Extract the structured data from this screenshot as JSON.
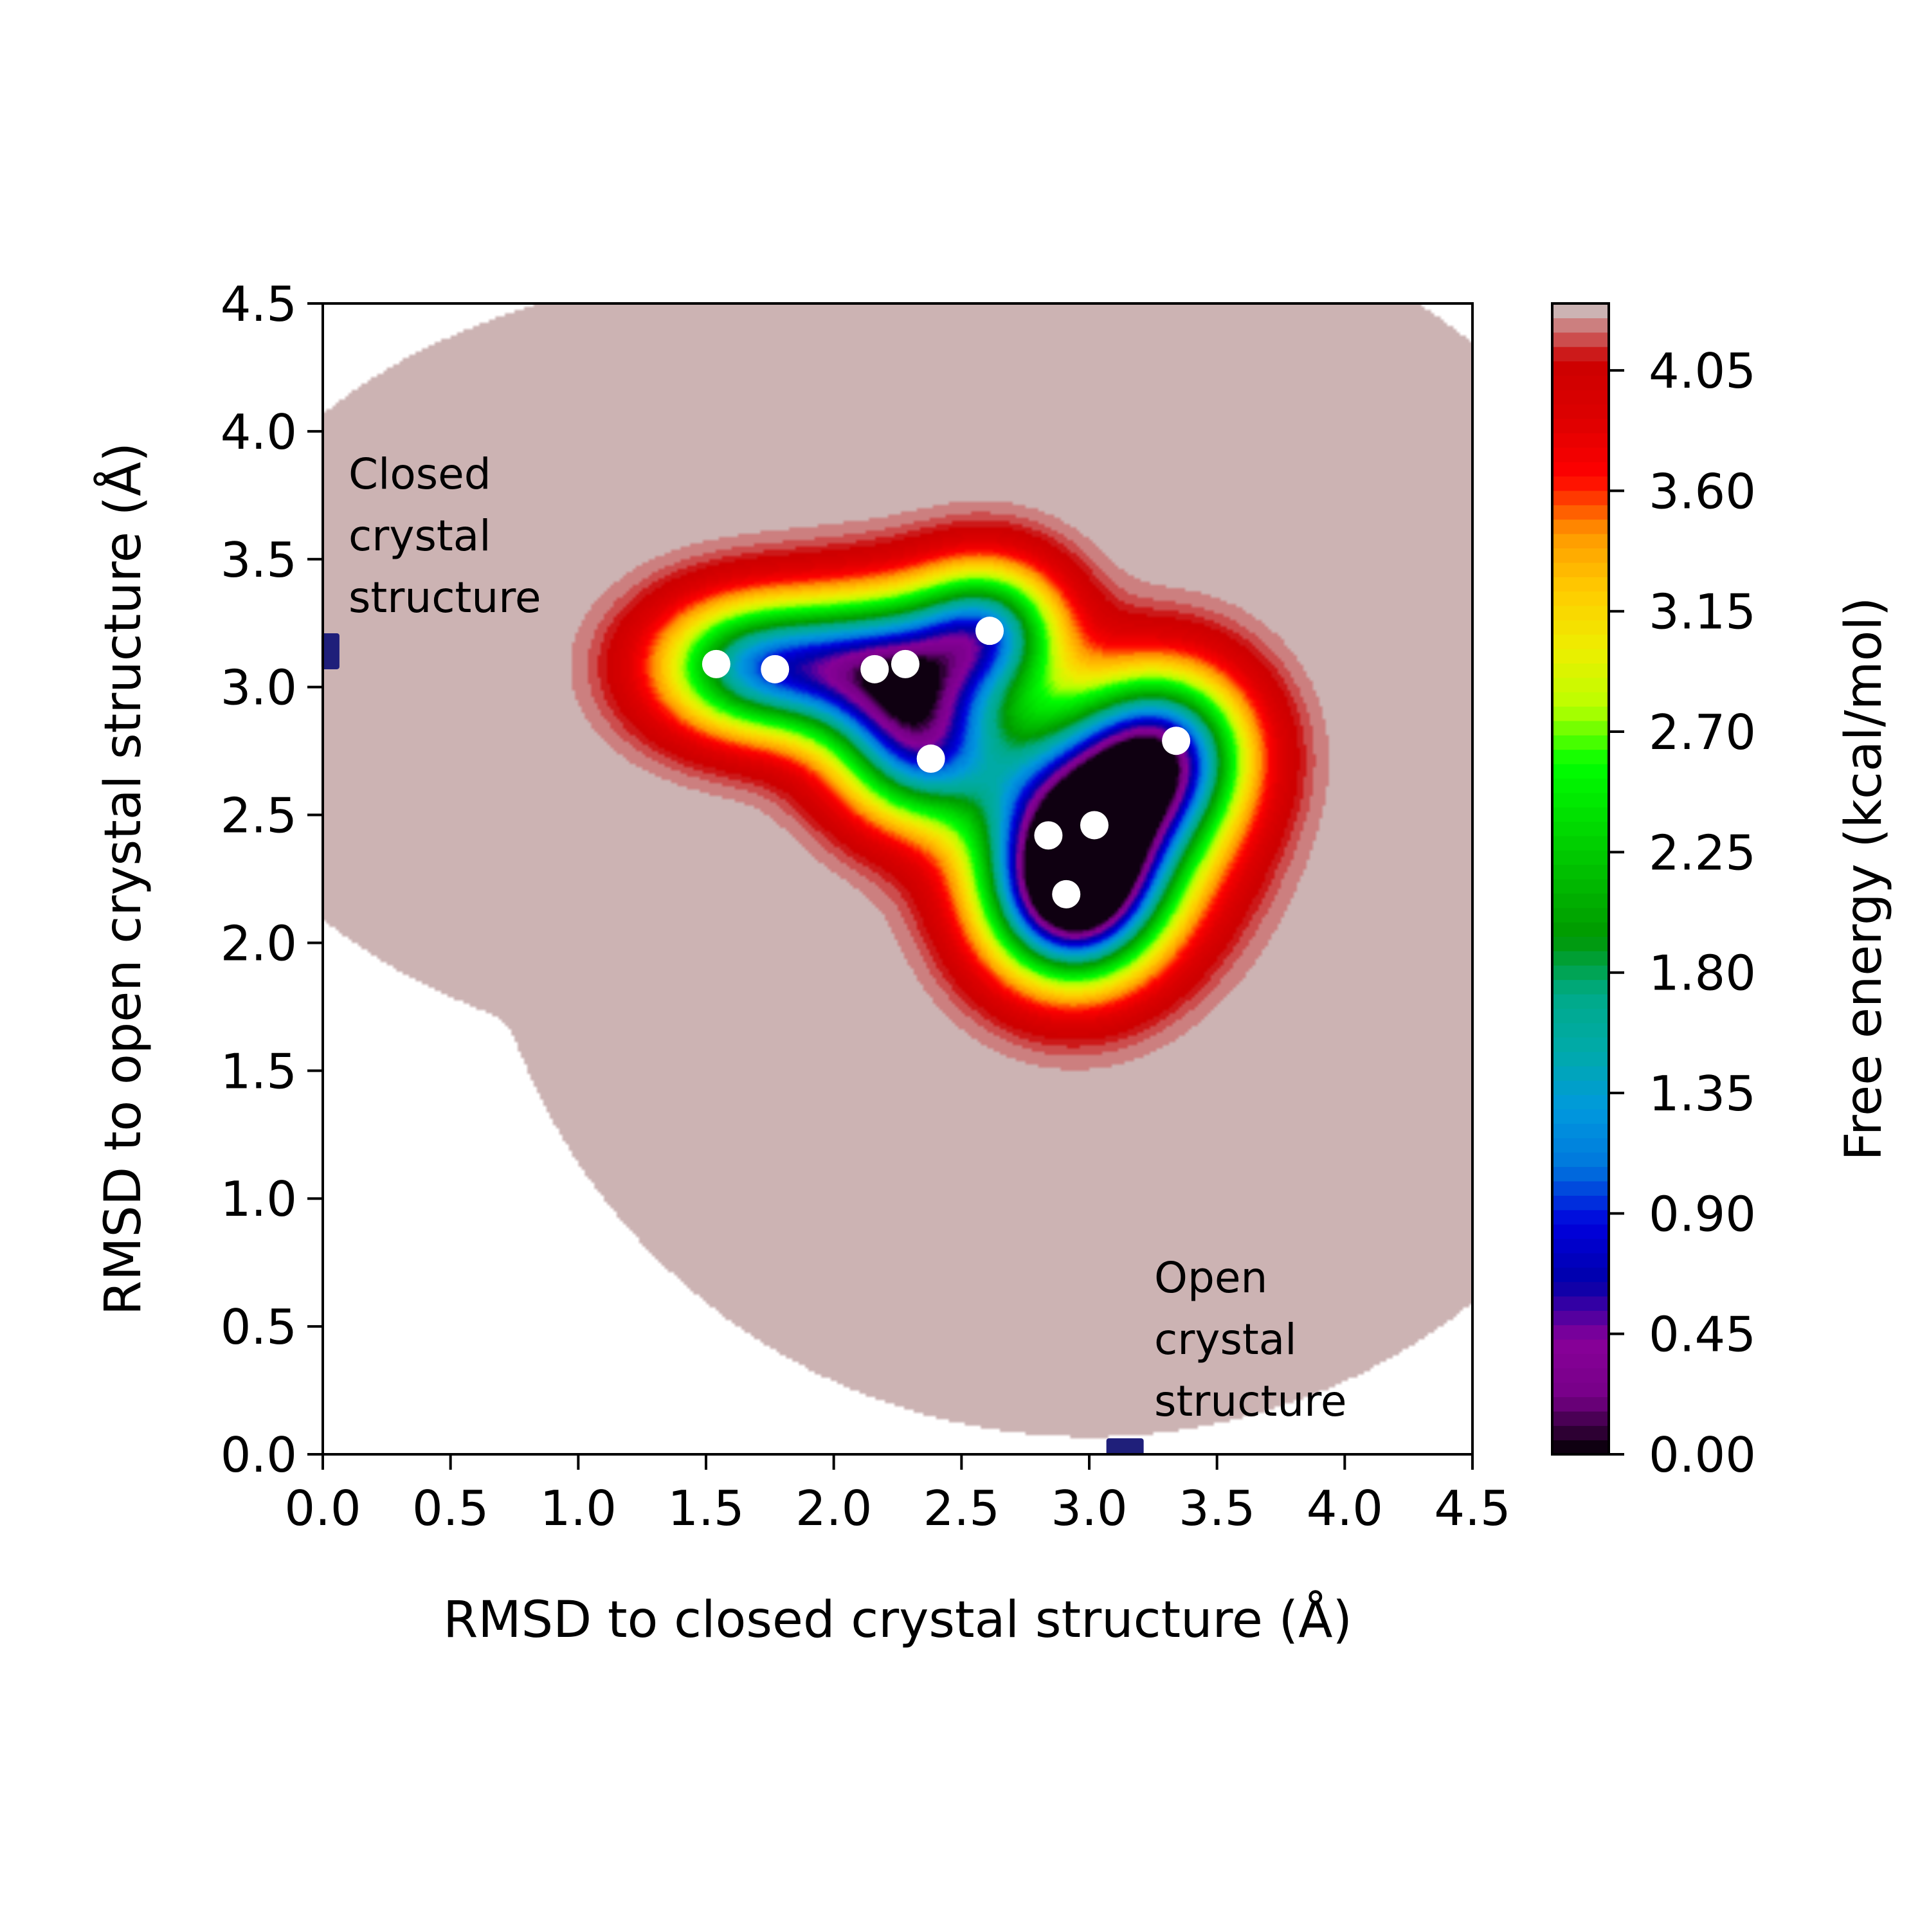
{
  "chart_data": {
    "type": "heatmap",
    "title": "",
    "xlabel": "RMSD to closed crystal structure (Å)",
    "ylabel": "RMSD to open crystal structure (Å)",
    "xlim": [
      0.0,
      4.5
    ],
    "ylim": [
      0.0,
      4.5
    ],
    "x_ticks": [
      "0.0",
      "0.5",
      "1.0",
      "1.5",
      "2.0",
      "2.5",
      "3.0",
      "3.5",
      "4.0",
      "4.5"
    ],
    "y_ticks": [
      "0.0",
      "0.5",
      "1.0",
      "1.5",
      "2.0",
      "2.5",
      "3.0",
      "3.5",
      "4.0",
      "4.5"
    ],
    "grid": false,
    "colorbar": {
      "label": "Free energy (kcal/mol)",
      "range": [
        0.0,
        4.3
      ],
      "ticks": [
        "0.00",
        "0.45",
        "0.90",
        "1.35",
        "1.80",
        "2.25",
        "2.70",
        "3.15",
        "3.60",
        "4.05"
      ],
      "tick_values": [
        0.0,
        0.45,
        0.9,
        1.35,
        1.8,
        2.25,
        2.7,
        3.15,
        3.6,
        4.05
      ],
      "colormap": "nipy_spectral"
    },
    "free_energy_surface": {
      "minimum": [
        3.0,
        2.47
      ],
      "basins": [
        {
          "x": 3.0,
          "y": 2.47,
          "depth": 4.3,
          "sx": 0.28,
          "sy": 0.28
        },
        {
          "x": 2.93,
          "y": 2.15,
          "depth": 3.2,
          "sx": 0.22,
          "sy": 0.22
        },
        {
          "x": 3.3,
          "y": 2.75,
          "depth": 2.9,
          "sx": 0.22,
          "sy": 0.22
        },
        {
          "x": 2.35,
          "y": 2.75,
          "depth": 2.8,
          "sx": 0.22,
          "sy": 0.2
        },
        {
          "x": 2.2,
          "y": 3.07,
          "depth": 3.05,
          "sx": 0.26,
          "sy": 0.2
        },
        {
          "x": 1.7,
          "y": 3.08,
          "depth": 2.8,
          "sx": 0.26,
          "sy": 0.18
        },
        {
          "x": 2.6,
          "y": 3.22,
          "depth": 2.65,
          "sx": 0.2,
          "sy": 0.18
        }
      ]
    },
    "scatter_points": [
      {
        "x": 1.54,
        "y": 3.09
      },
      {
        "x": 1.77,
        "y": 3.07
      },
      {
        "x": 2.16,
        "y": 3.07
      },
      {
        "x": 2.28,
        "y": 3.09
      },
      {
        "x": 2.61,
        "y": 3.22
      },
      {
        "x": 2.38,
        "y": 2.72
      },
      {
        "x": 3.34,
        "y": 2.79
      },
      {
        "x": 2.84,
        "y": 2.42
      },
      {
        "x": 3.02,
        "y": 2.46
      },
      {
        "x": 2.91,
        "y": 2.19
      }
    ],
    "reference_markers": [
      {
        "label_lines": [
          "Closed",
          "crystal",
          "structure"
        ],
        "x": 0.03,
        "y": 3.14
      },
      {
        "label_lines": [
          "Open",
          "crystal",
          "structure"
        ],
        "x": 3.14,
        "y": 0.03
      }
    ],
    "colors": {
      "scatter": "#ffffff",
      "reference_marker": "#1f1f7a"
    }
  }
}
